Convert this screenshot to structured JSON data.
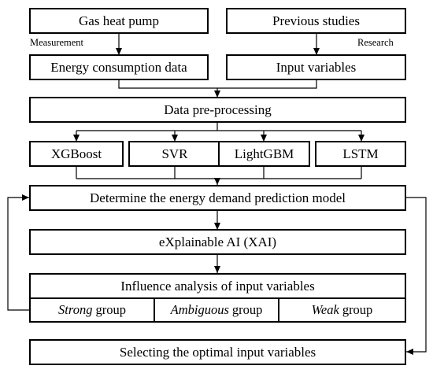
{
  "nodes": {
    "gas_heat_pump": "Gas heat pump",
    "previous_studies": "Previous studies",
    "energy_consumption_data": "Energy consumption data",
    "input_variables": "Input variables",
    "data_preprocessing": "Data pre-processing",
    "xgboost": "XGBoost",
    "svr": "SVR",
    "lightgbm": "LightGBM",
    "lstm": "LSTM",
    "determine_model": "Determine the energy demand prediction model",
    "xai": "eXplainable AI (XAI)",
    "influence_analysis": "Influence analysis of input variables",
    "selecting_optimal": "Selecting the optimal input variables"
  },
  "edge_labels": {
    "measurement": "Measurement",
    "research": "Research"
  },
  "groups": [
    {
      "emphasis": "Strong",
      "suffix": "group"
    },
    {
      "emphasis": "Ambiguous",
      "suffix": "group"
    },
    {
      "emphasis": "Weak",
      "suffix": "group"
    }
  ]
}
